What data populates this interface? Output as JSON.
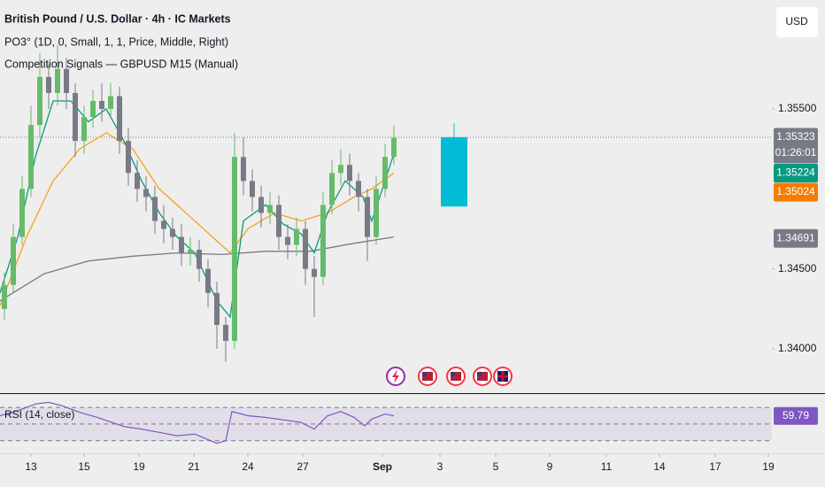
{
  "chart_data": [
    {
      "type": "candlestick",
      "title": "British Pound / U.S. Dollar · 4h · IC Markets",
      "subtitles": [
        "PO3° (1D, 0, Small, 1, 1, Price, Middle, Right)",
        "Competition Signals — GBPUSD M15 (Manual)"
      ],
      "currency": "USD",
      "up_color": "#66bb6a",
      "down_color": "#787b86",
      "x": [
        0.5,
        1.5,
        2.5,
        3.5,
        4.5,
        5.5,
        6.5,
        7.5,
        8.5,
        9.5,
        10.5,
        11.5,
        12.5,
        13.5,
        14.5,
        15.5,
        16.5,
        17.5,
        18.5,
        19.5,
        20.5,
        21.5,
        22.5,
        23.5,
        24.5,
        25.5,
        26.5,
        27.5,
        28.5,
        29.5,
        30.5,
        31.5,
        32.5,
        33.5,
        34.5,
        35.5,
        36.5,
        37.5,
        38.5,
        39.5,
        40.5,
        41.5,
        42.5,
        43.5,
        44.5
      ],
      "open": [
        1.3425,
        1.344,
        1.347,
        1.35,
        1.354,
        1.357,
        1.356,
        1.3575,
        1.356,
        1.353,
        1.3545,
        1.3555,
        1.355,
        1.3558,
        1.353,
        1.351,
        1.35,
        1.3495,
        1.348,
        1.3475,
        1.347,
        1.346,
        1.3462,
        1.345,
        1.3435,
        1.3415,
        1.3405,
        1.352,
        1.3505,
        1.3495,
        1.3485,
        1.349,
        1.347,
        1.3465,
        1.3475,
        1.345,
        1.3445,
        1.349,
        1.351,
        1.3515,
        1.3505,
        1.3495,
        1.347,
        1.35,
        1.352
      ],
      "high": [
        1.3448,
        1.3478,
        1.3508,
        1.3552,
        1.3585,
        1.3578,
        1.359,
        1.3582,
        1.3566,
        1.3552,
        1.3562,
        1.3566,
        1.3566,
        1.3564,
        1.3538,
        1.3518,
        1.3508,
        1.3502,
        1.349,
        1.3482,
        1.3478,
        1.347,
        1.3468,
        1.3456,
        1.3442,
        1.342,
        1.3535,
        1.3532,
        1.3512,
        1.3502,
        1.3498,
        1.3496,
        1.3478,
        1.3482,
        1.348,
        1.3458,
        1.3498,
        1.3518,
        1.3525,
        1.3522,
        1.351,
        1.35,
        1.3508,
        1.3528,
        1.354
      ],
      "low": [
        1.3418,
        1.3435,
        1.3465,
        1.3495,
        1.3532,
        1.355,
        1.3552,
        1.355,
        1.352,
        1.3522,
        1.3538,
        1.3542,
        1.3545,
        1.3522,
        1.3502,
        1.3492,
        1.3486,
        1.3472,
        1.3466,
        1.3462,
        1.3452,
        1.3452,
        1.3442,
        1.3426,
        1.34,
        1.3392,
        1.34,
        1.3496,
        1.3486,
        1.3476,
        1.3478,
        1.3462,
        1.3456,
        1.3458,
        1.344,
        1.342,
        1.344,
        1.3484,
        1.3502,
        1.3496,
        1.3486,
        1.3455,
        1.3465,
        1.3495,
        1.3515
      ],
      "close": [
        1.344,
        1.347,
        1.35,
        1.354,
        1.357,
        1.356,
        1.3575,
        1.356,
        1.353,
        1.3545,
        1.3555,
        1.355,
        1.3558,
        1.353,
        1.351,
        1.35,
        1.3495,
        1.348,
        1.3475,
        1.347,
        1.346,
        1.3462,
        1.345,
        1.3435,
        1.3415,
        1.3405,
        1.352,
        1.3505,
        1.3495,
        1.3485,
        1.349,
        1.347,
        1.3465,
        1.3475,
        1.345,
        1.3445,
        1.349,
        1.351,
        1.3515,
        1.3505,
        1.3495,
        1.347,
        1.35,
        1.352,
        1.3532
      ],
      "lines": [
        {
          "color": "#787b86",
          "x": [
            0,
            5,
            10,
            15,
            20,
            25,
            30,
            35,
            40,
            44.5
          ],
          "values": [
            1.343,
            1.3447,
            1.3455,
            1.3458,
            1.346,
            1.3459,
            1.3461,
            1.3461,
            1.3466,
            1.347
          ]
        },
        {
          "color": "#f7a21b",
          "x": [
            0,
            3,
            6,
            9,
            12,
            15,
            18,
            21,
            24,
            26,
            28,
            31,
            34,
            37,
            40,
            42,
            44.5
          ],
          "values": [
            1.3427,
            1.347,
            1.3505,
            1.3525,
            1.3535,
            1.3525,
            1.35,
            1.3485,
            1.347,
            1.346,
            1.3475,
            1.3485,
            1.348,
            1.3485,
            1.3495,
            1.35,
            1.351
          ]
        },
        {
          "color": "#089981",
          "x": [
            0,
            2,
            4,
            6,
            8,
            10,
            12,
            14,
            16,
            18,
            20,
            22,
            24.5,
            26,
            27.5,
            30,
            32,
            34,
            35.5,
            37,
            39,
            41,
            42,
            43.5,
            44.5
          ],
          "values": [
            1.3435,
            1.347,
            1.352,
            1.3555,
            1.3555,
            1.3542,
            1.355,
            1.353,
            1.3505,
            1.3485,
            1.347,
            1.346,
            1.343,
            1.342,
            1.348,
            1.349,
            1.3478,
            1.3472,
            1.346,
            1.3485,
            1.3505,
            1.3495,
            1.348,
            1.3505,
            1.3522
          ]
        }
      ],
      "projection": {
        "x": 51.3,
        "high": 1.3541,
        "top": 1.35323,
        "bottom": 1.3489,
        "color": "#00bcd4"
      },
      "current_price": 1.35323,
      "price_labels": [
        {
          "value": 1.35323,
          "label": "1.35323",
          "sublabel": "01:26:01",
          "color": "#787b86"
        },
        {
          "value": 1.35224,
          "label": "1.35224",
          "color": "#089981"
        },
        {
          "value": 1.35024,
          "label": "1.35024",
          "color": "#f57c00"
        },
        {
          "value": 1.34691,
          "label": "1.34691",
          "color": "#787b86"
        }
      ],
      "xlim": [
        0,
        87
      ],
      "ylim": [
        1.33729,
        1.36181
      ],
      "yticks": [
        {
          "value": 1.355,
          "label": "1.35500"
        },
        {
          "value": 1.345,
          "label": "1.34500"
        },
        {
          "value": 1.34,
          "label": "1.34000"
        }
      ],
      "xticks": [
        {
          "value": 3.5,
          "label": "13"
        },
        {
          "value": 9.5,
          "label": "15"
        },
        {
          "value": 15.7,
          "label": "19"
        },
        {
          "value": 21.9,
          "label": "21"
        },
        {
          "value": 28,
          "label": "24"
        },
        {
          "value": 34.2,
          "label": "27"
        },
        {
          "value": 43.2,
          "label": "Sep"
        },
        {
          "value": 49.7,
          "label": "3"
        },
        {
          "value": 56,
          "label": "5"
        },
        {
          "value": 62.1,
          "label": "9"
        },
        {
          "value": 68.5,
          "label": "11"
        },
        {
          "value": 74.5,
          "label": "14"
        },
        {
          "value": 80.8,
          "label": "17"
        },
        {
          "value": 86.8,
          "label": "19"
        }
      ]
    },
    {
      "type": "line",
      "title": "RSI (14, close)",
      "color": "#7e57c2",
      "x": [
        0,
        2,
        4,
        5.5,
        7,
        9,
        11,
        14,
        16,
        18,
        20,
        22,
        24.5,
        25.5,
        26.2,
        28,
        30,
        32,
        34,
        35.5,
        37,
        38.5,
        40,
        41.2,
        42,
        43.5,
        44.5
      ],
      "values": [
        60,
        66,
        74,
        76,
        72,
        64,
        58,
        47,
        44,
        40,
        36,
        38,
        27,
        30,
        65,
        60,
        58,
        55,
        52,
        44,
        60,
        65,
        58,
        48,
        56,
        62,
        59.79
      ],
      "levels": [
        70,
        50,
        30
      ],
      "ylim": [
        17,
        86
      ],
      "value_label": {
        "value": 59.79,
        "label": "59.79"
      }
    }
  ]
}
